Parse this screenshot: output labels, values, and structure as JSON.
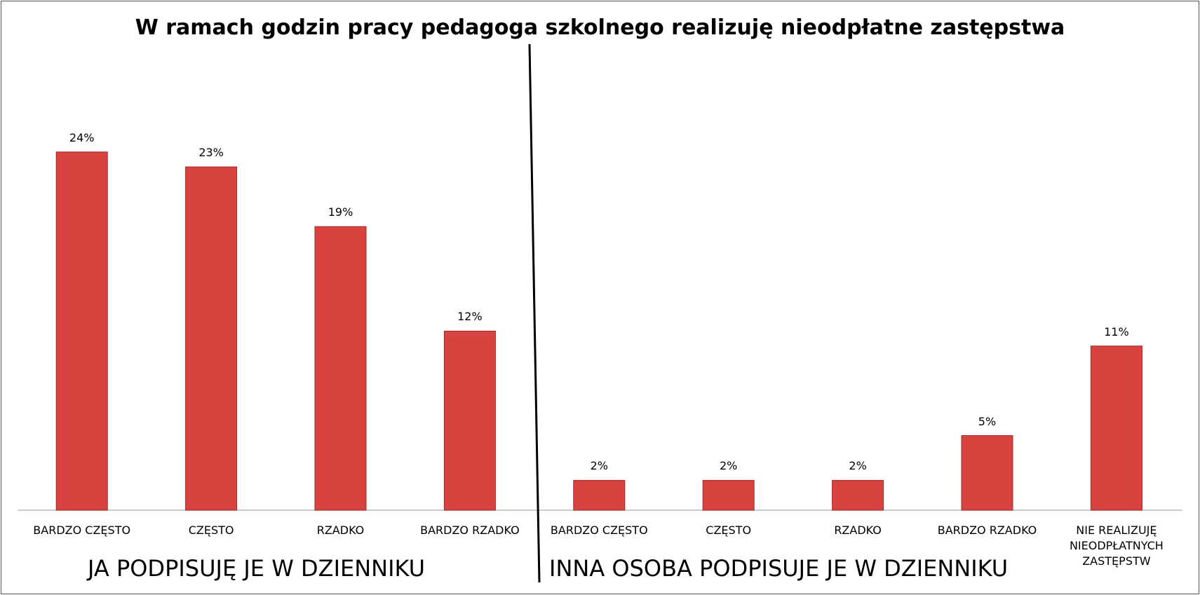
{
  "chart_data": {
    "type": "bar",
    "title": "W ramach godzin pracy pedagoga szkolnego realizuję nieodpłatne zastępstwa",
    "categories": [
      "BARDZO CZĘSTO",
      "CZĘSTO",
      "RZADKO",
      "BARDZO RZADKO",
      "BARDZO CZĘSTO",
      "CZĘSTO",
      "RZADKO",
      "BARDZO RZADKO",
      "NIE REALIZUJĘ NIEODPŁATNYCH ZASTĘPSTW"
    ],
    "values": [
      24,
      23,
      19,
      12,
      2,
      2,
      2,
      5,
      11
    ],
    "value_labels": [
      "24%",
      "23%",
      "19%",
      "12%",
      "2%",
      "2%",
      "2%",
      "5%",
      "11%"
    ],
    "color": "#d84340",
    "annotations": [
      "JA PODPISUJĘ JE W DZIENNIKU",
      "INNA OSOBA PODPISUJE JE W DZIENNIKU"
    ]
  }
}
